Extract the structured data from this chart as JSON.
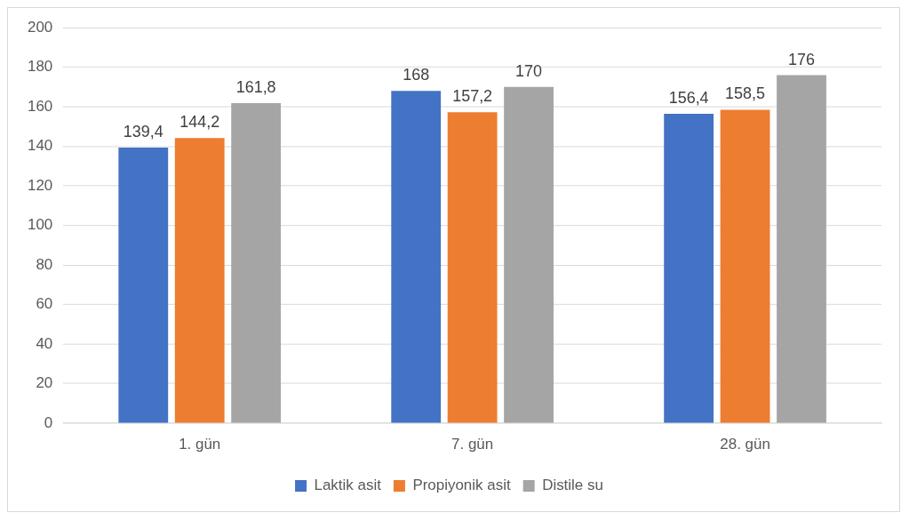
{
  "chart_data": {
    "type": "bar",
    "categories": [
      "1. gün",
      "7. gün",
      "28. gün"
    ],
    "series": [
      {
        "name": "Laktik asit",
        "color": "#4472c4",
        "values": [
          139.4,
          168,
          156.4
        ],
        "value_labels": [
          "139,4",
          "168",
          "156,4"
        ]
      },
      {
        "name": "Propiyonik asit",
        "color": "#ed7d31",
        "values": [
          144.2,
          157.2,
          158.5
        ],
        "value_labels": [
          "144,2",
          "157,2",
          "158,5"
        ]
      },
      {
        "name": "Distile su",
        "color": "#a5a5a5",
        "values": [
          161.8,
          170,
          176
        ],
        "value_labels": [
          "161,8",
          "170",
          "176"
        ]
      }
    ],
    "ylim": [
      0,
      200
    ],
    "yticks": [
      0,
      20,
      40,
      60,
      80,
      100,
      120,
      140,
      160,
      180,
      200
    ],
    "grid": "y",
    "legend": "bottom"
  }
}
